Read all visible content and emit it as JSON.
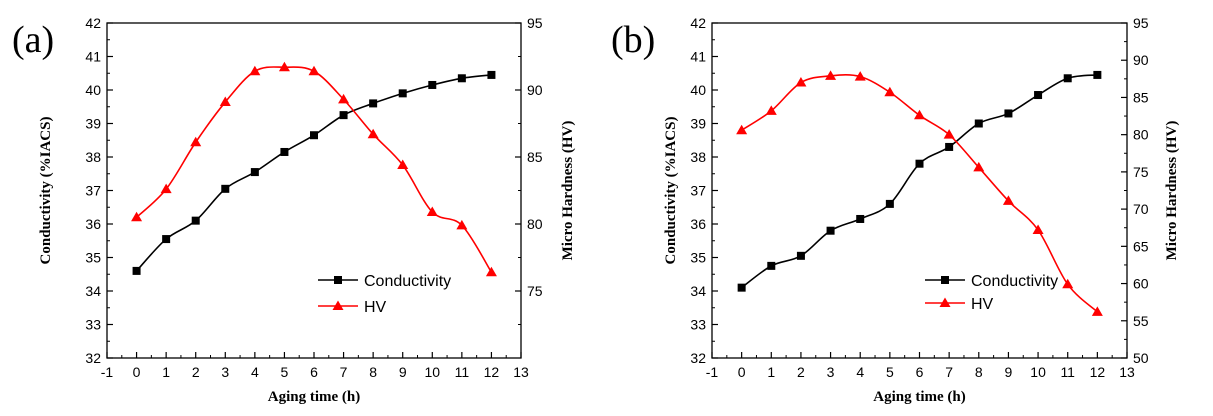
{
  "chart_data": [
    {
      "type": "line",
      "panel_label": "(a)",
      "xlabel": "Aging time (h)",
      "ylabel": "Conductivity (%IACS)",
      "y2label": "Micro Hardness (HV)",
      "xlim": [
        -1,
        13
      ],
      "ylim": [
        32,
        42
      ],
      "y2lim": [
        70,
        95
      ],
      "x_ticks": [
        "-1",
        "0",
        "1",
        "2",
        "3",
        "4",
        "5",
        "6",
        "7",
        "8",
        "9",
        "10",
        "11",
        "12",
        "13"
      ],
      "y_ticks": [
        "32",
        "33",
        "34",
        "35",
        "36",
        "37",
        "38",
        "39",
        "40",
        "41",
        "42"
      ],
      "y2_ticks": [
        "75",
        "80",
        "85",
        "90",
        "95"
      ],
      "legend_position": "bottom-right",
      "x": [
        0,
        1,
        2,
        3,
        4,
        5,
        6,
        7,
        8,
        9,
        10,
        11,
        12
      ],
      "series": [
        {
          "name": "Conductivity",
          "axis": "left",
          "color": "#000000",
          "marker": "square",
          "values": [
            34.6,
            35.55,
            36.1,
            37.05,
            37.55,
            38.15,
            38.65,
            39.25,
            39.6,
            39.9,
            40.15,
            40.35,
            40.45
          ]
        },
        {
          "name": "HV",
          "axis": "right",
          "color": "#ff0000",
          "marker": "triangle",
          "values": [
            80.5,
            82.6,
            86.1,
            89.1,
            91.4,
            91.7,
            91.4,
            89.3,
            86.7,
            84.4,
            80.9,
            79.9,
            76.4
          ]
        }
      ]
    },
    {
      "type": "line",
      "panel_label": "(b)",
      "xlabel": "Aging time (h)",
      "ylabel": "Conductivity (%IACS)",
      "y2label": "Micro Hardness (HV)",
      "xlim": [
        -1,
        13
      ],
      "ylim": [
        32,
        42
      ],
      "y2lim": [
        50,
        95
      ],
      "x_ticks": [
        "-1",
        "0",
        "1",
        "2",
        "3",
        "4",
        "5",
        "6",
        "7",
        "8",
        "9",
        "10",
        "11",
        "12",
        "13"
      ],
      "y_ticks": [
        "32",
        "33",
        "34",
        "35",
        "36",
        "37",
        "38",
        "39",
        "40",
        "41",
        "42"
      ],
      "y2_ticks": [
        "50",
        "55",
        "60",
        "65",
        "70",
        "75",
        "80",
        "85",
        "90",
        "95"
      ],
      "legend_position": "bottom-right",
      "x": [
        0,
        1,
        2,
        3,
        4,
        5,
        6,
        7,
        8,
        9,
        10,
        11,
        12
      ],
      "series": [
        {
          "name": "Conductivity",
          "axis": "left",
          "color": "#000000",
          "marker": "square",
          "values": [
            34.1,
            34.75,
            35.05,
            35.8,
            36.15,
            36.6,
            37.8,
            38.3,
            39.0,
            39.3,
            39.85,
            40.35,
            40.45
          ]
        },
        {
          "name": "HV",
          "axis": "right",
          "color": "#ff0000",
          "marker": "triangle",
          "values": [
            80.6,
            83.2,
            87.0,
            87.9,
            87.8,
            85.7,
            82.6,
            80.0,
            75.6,
            71.1,
            67.2,
            59.9,
            56.2
          ]
        }
      ]
    }
  ]
}
